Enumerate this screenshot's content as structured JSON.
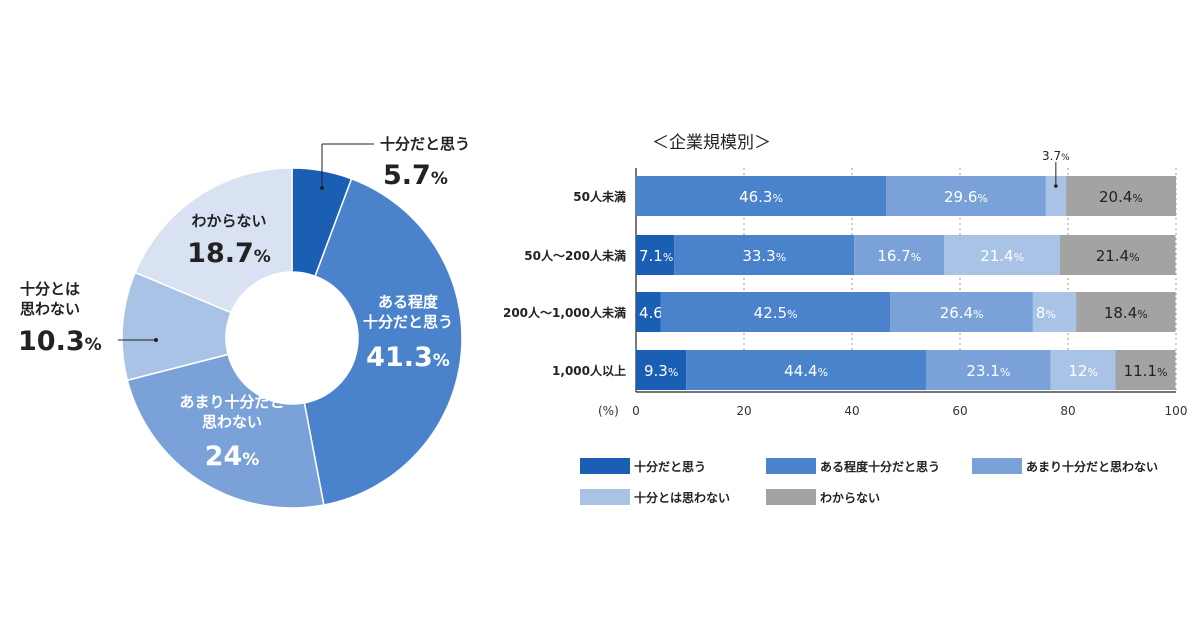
{
  "chart_data": [
    {
      "type": "pie",
      "title": "",
      "categories": [
        "十分だと思う",
        "ある程度十分だと思う",
        "あまり十分だと思わない",
        "十分とは思わない",
        "わからない"
      ],
      "values": [
        5.7,
        41.3,
        24,
        10.3,
        18.7
      ],
      "value_labels": [
        "5.7",
        "41.3",
        "24",
        "10.3",
        "18.7"
      ],
      "unit": "%",
      "label_lines": [
        [
          "十分だと思う"
        ],
        [
          "ある程度",
          "十分だと思う"
        ],
        [
          "あまり十分だと",
          "思わない"
        ],
        [
          "十分とは",
          "思わない"
        ],
        [
          "わからない"
        ]
      ],
      "donut": true
    },
    {
      "type": "bar",
      "orientation": "horizontal",
      "stacked": true,
      "title": "＜企業規模別＞",
      "categories": [
        "50人未満",
        "50人～200人未満",
        "200人～1,000人未満",
        "1,000人以上"
      ],
      "series": [
        {
          "name": "十分だと思う",
          "values": [
            0,
            7.1,
            4.6,
            9.3
          ],
          "labels": [
            "",
            "7.1",
            "4.6",
            "9.3"
          ]
        },
        {
          "name": "ある程度十分だと思う",
          "values": [
            46.3,
            33.3,
            42.5,
            44.4
          ],
          "labels": [
            "46.3",
            "33.3",
            "42.5",
            "44.4"
          ]
        },
        {
          "name": "あまり十分だと思わない",
          "values": [
            29.6,
            16.7,
            26.4,
            23.1
          ],
          "labels": [
            "29.6",
            "16.7",
            "26.4",
            "23.1"
          ]
        },
        {
          "name": "十分とは思わない",
          "values": [
            3.7,
            21.4,
            8,
            12
          ],
          "labels": [
            "3.7",
            "21.4",
            "8",
            "12"
          ]
        },
        {
          "name": "わからない",
          "values": [
            20.4,
            21.4,
            18.4,
            11.1
          ],
          "labels": [
            "20.4",
            "21.4",
            "18.4",
            "11.1"
          ]
        }
      ],
      "xlabel": "(%)",
      "xlim": [
        0,
        100
      ],
      "xticks": [
        "0",
        "20",
        "40",
        "60",
        "80",
        "100"
      ],
      "grid": true,
      "legend_position": "bottom",
      "unit": "%"
    }
  ],
  "colors": [
    "#1b5fb5",
    "#4a83cc",
    "#7ba2d8",
    "#a9c3e7",
    "#a3a3a3"
  ],
  "donut_colors": [
    "#1b5fb5",
    "#4a83cc",
    "#7ba2d8",
    "#a9c3e7",
    "#d8e2f3"
  ]
}
